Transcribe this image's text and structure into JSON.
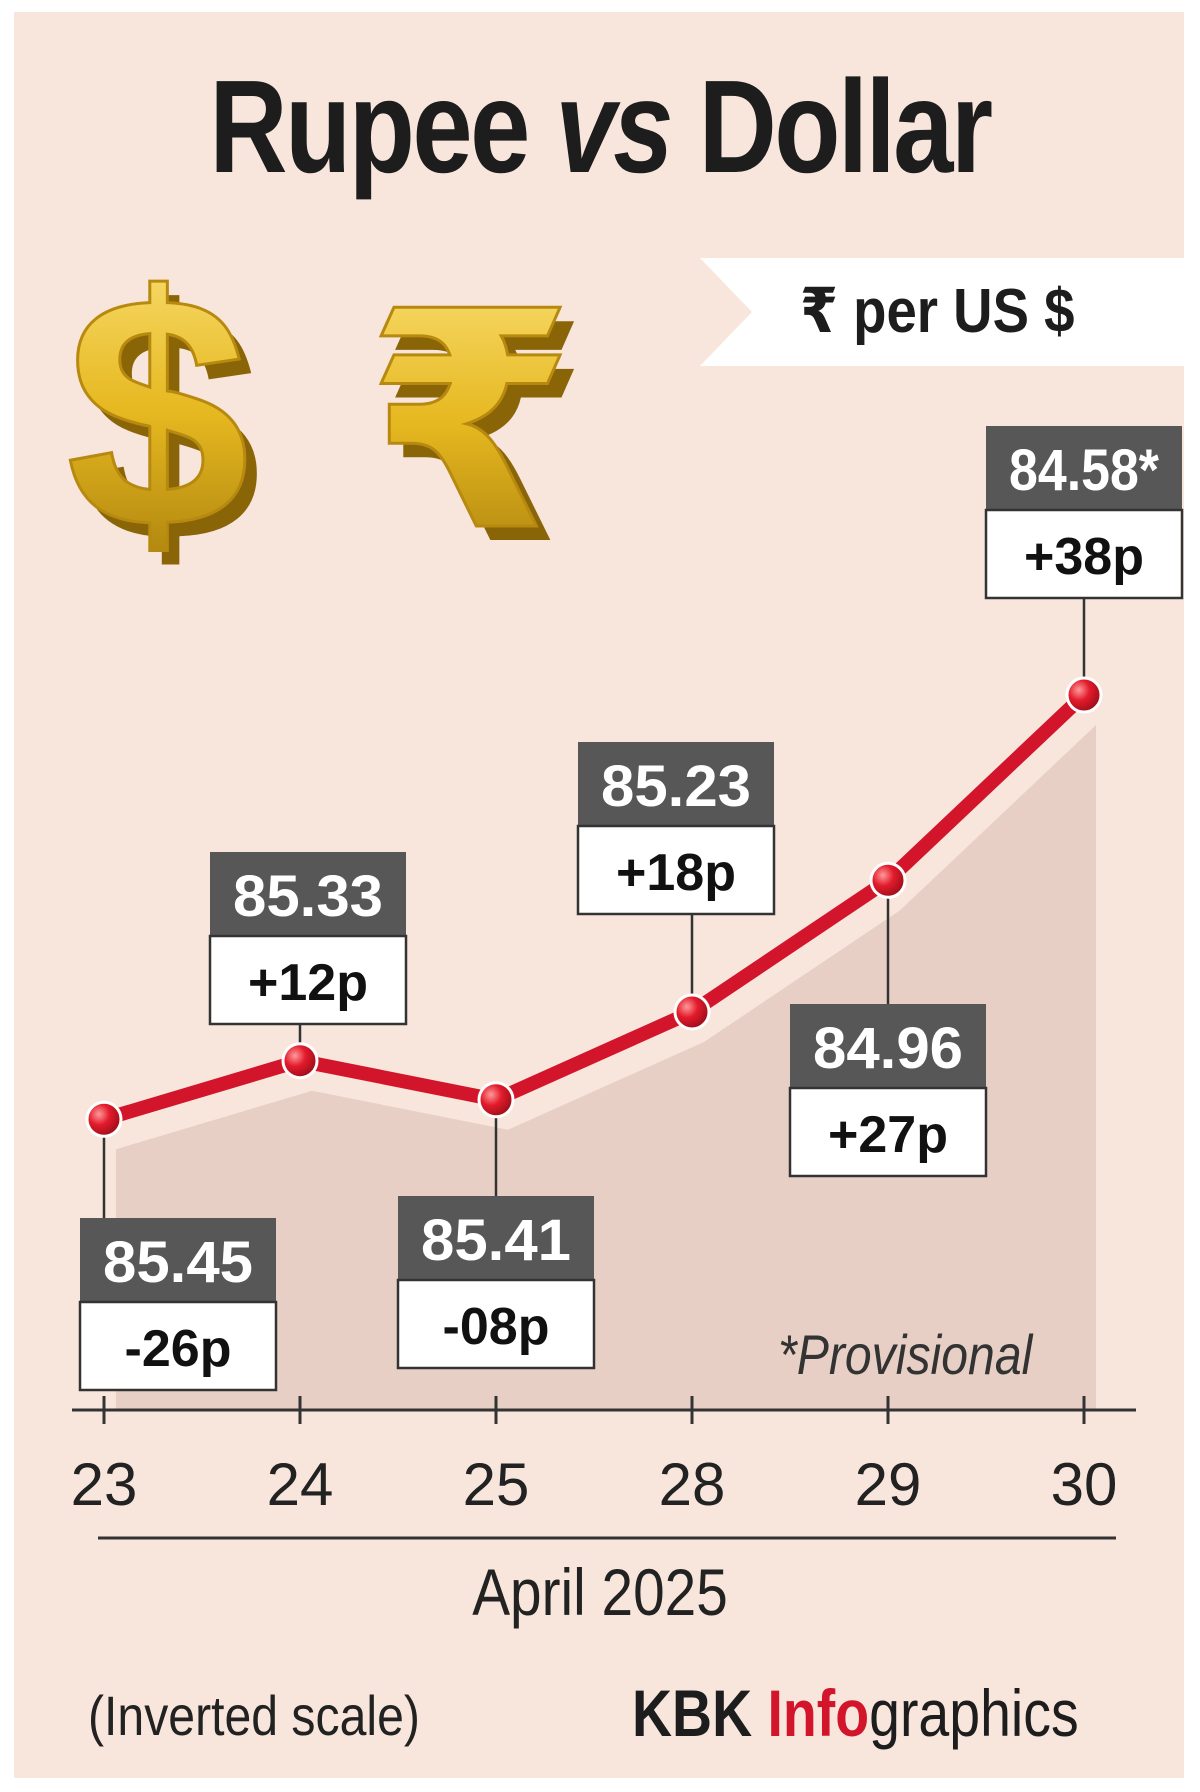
{
  "title": {
    "part1": "Rupee",
    "vs": "vs",
    "part2": "Dollar"
  },
  "unit_label": "₹ per US $",
  "icons": [
    "dollar-sign-icon",
    "rupee-sign-icon"
  ],
  "colors": {
    "background": "#f8e6dc",
    "line": "#d2152b",
    "value_box": "#575757",
    "shadow": "#e7cfc6",
    "gold": "#e6b820"
  },
  "provisional_note": "*Provisional",
  "scale_note": "(Inverted scale)",
  "credit": {
    "part1": "KBK ",
    "part2": "Info",
    "part3": "graphics"
  },
  "chart_data": {
    "type": "line",
    "y_inverted": true,
    "xlabel": "April 2025",
    "ylabel": "₹ per US $",
    "categories": [
      "23",
      "24",
      "25",
      "28",
      "29",
      "30"
    ],
    "values": [
      85.45,
      85.33,
      85.41,
      85.23,
      84.96,
      84.58
    ],
    "value_labels": [
      "85.45",
      "85.33",
      "85.41",
      "85.23",
      "84.96",
      "84.58*"
    ],
    "changes": [
      "-26p",
      "+12p",
      "-08p",
      "+18p",
      "+27p",
      "+38p"
    ],
    "label_positions": [
      "below",
      "above",
      "below",
      "above",
      "below",
      "above"
    ],
    "ylim": [
      85.55,
      84.5
    ]
  }
}
